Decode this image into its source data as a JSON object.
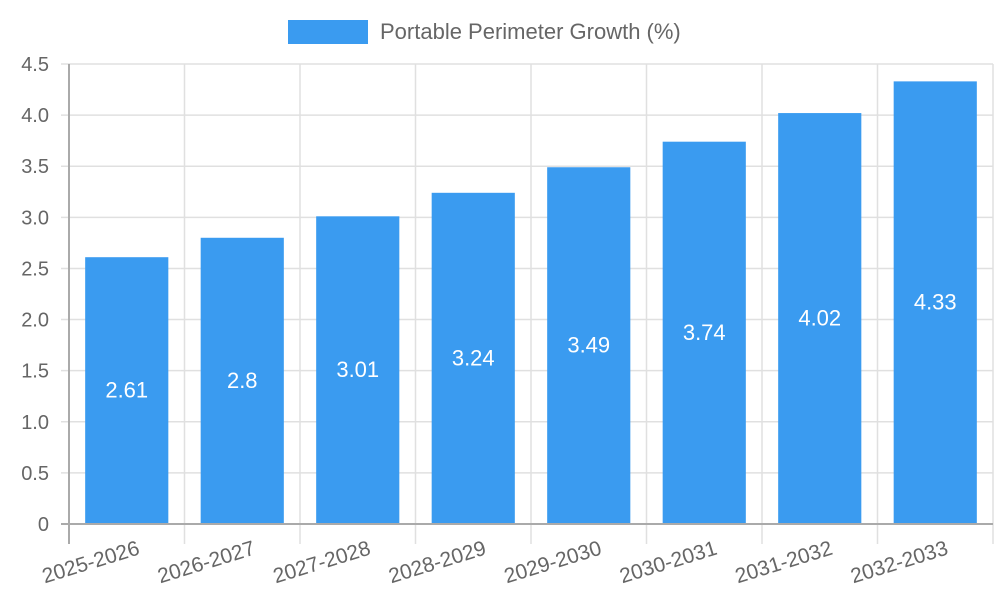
{
  "chart_data": {
    "type": "bar",
    "title": "",
    "xlabel": "",
    "ylabel": "",
    "categories": [
      "2025-2026",
      "2026-2027",
      "2027-2028",
      "2028-2029",
      "2029-2030",
      "2030-2031",
      "2031-2032",
      "2032-2033"
    ],
    "series": [
      {
        "name": "Portable Perimeter Growth (%)",
        "values": [
          2.61,
          2.8,
          3.01,
          3.24,
          3.49,
          3.74,
          4.02,
          4.33
        ],
        "color": "#3a9bf0"
      }
    ],
    "ylim": [
      0,
      4.5
    ],
    "yticks": [
      "0",
      "0.5",
      "1.0",
      "1.5",
      "2.0",
      "2.5",
      "3.0",
      "3.5",
      "4.0",
      "4.5"
    ],
    "grid": true,
    "legend_position": "top",
    "data_labels": [
      "2.61",
      "2.8",
      "3.01",
      "3.24",
      "3.49",
      "3.74",
      "4.02",
      "4.33"
    ]
  },
  "legend": {
    "label": "Portable Perimeter Growth (%)",
    "color": "#3a9bf0"
  }
}
